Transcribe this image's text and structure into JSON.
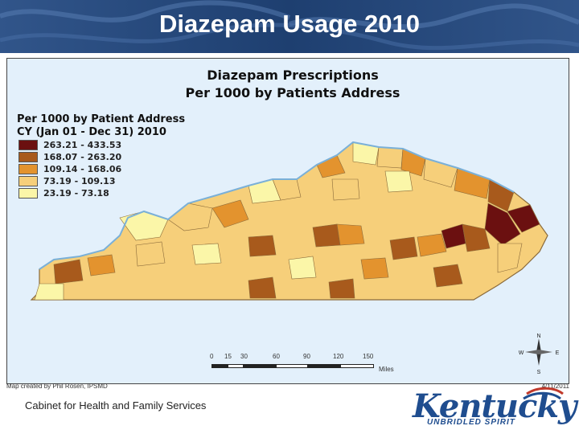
{
  "slide": {
    "title": "Diazepam Usage 2010",
    "footer": "Cabinet for Health and Family Services"
  },
  "map": {
    "title_line1": "Diazepam Prescriptions",
    "title_line2": "Per 1000 by Patients Address",
    "legend": {
      "heading_line1": "Per 1000 by Patient Address",
      "heading_line2": "CY (Jan 01 - Dec 31) 2010",
      "classes": [
        {
          "label": "263.21 - 433.53",
          "color": "#6b1010"
        },
        {
          "label": "168.07 - 263.20",
          "color": "#a85a1c"
        },
        {
          "label": "109.14 - 168.06",
          "color": "#e3932e"
        },
        {
          "label": "73.19 - 109.13",
          "color": "#f6cf7a"
        },
        {
          "label": "23.19 - 73.18",
          "color": "#fbf6a8"
        }
      ]
    },
    "scale": {
      "ticks": [
        "0",
        "15",
        "30",
        "60",
        "90",
        "120",
        "150"
      ],
      "unit": "Miles"
    },
    "compass": {
      "n": "N",
      "s": "S",
      "e": "E",
      "w": "W"
    },
    "credit": "Map created by Phil Rosen, IPSMD",
    "date": "4/11/2011",
    "colors": {
      "water": "#e3f0fb",
      "border": "#8a6a3a"
    }
  },
  "logo": {
    "word": "Kentucky",
    "tagline": "UNBRIDLED SPIRIT"
  }
}
